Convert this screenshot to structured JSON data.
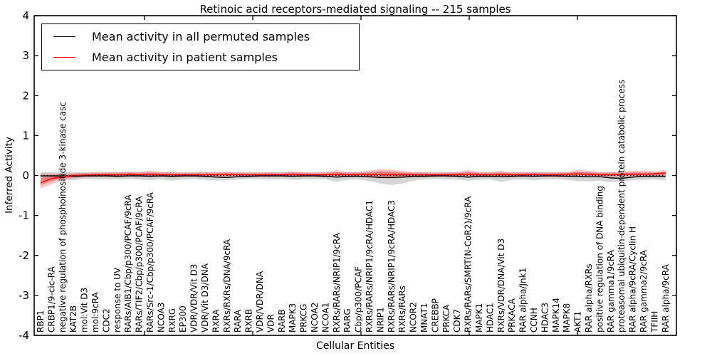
{
  "title": "Retinoic acid receptors-mediated signaling -- 215 samples",
  "axes": {
    "ylabel": "Inferred Activity",
    "xlabel": "Cellular Entities",
    "yticks": [
      "-4",
      "-3",
      "-2",
      "-1",
      "0",
      "1",
      "2",
      "3",
      "4"
    ],
    "ylim": [
      -4,
      4
    ]
  },
  "legend": {
    "entries": [
      {
        "label": "Mean activity in all permuted samples",
        "color": "#000000"
      },
      {
        "label": "Mean activity in patient samples",
        "color": "#ff0000"
      }
    ]
  },
  "colors": {
    "permuted_line": "#000000",
    "patient_line": "#ff0000",
    "permuted_band": "rgba(0,0,0,0.16)",
    "patient_band_outer": "rgba(255,0,0,0.22)",
    "patient_band_inner": "rgba(255,0,0,0.30)",
    "zero_line": "#000000",
    "frame": "#000000"
  },
  "chart_data": {
    "type": "line",
    "title": "Retinoic acid receptors-mediated signaling -- 215 samples",
    "xlabel": "Cellular Entities",
    "ylabel": "Inferred Activity",
    "ylim": [
      -4,
      4
    ],
    "grid": false,
    "legend_position": "upper left",
    "zero_reference_line": 0,
    "categories": [
      "RBP1",
      "CRBP1/9-cic-RA",
      "negative regulation of phosphoinositide 3-kinase casc",
      "KAT2B",
      "mol:Vit D3",
      "mol:9cRA",
      "CDC2",
      "response to UV",
      "RARs/AIB1/Cbp/p300/PCAF/9cRA",
      "RARs/TIF2/Cbp/p300/PCAF/9cRA",
      "RARs/Src-1/Cbp/p300/PCAF/9cRA",
      "NCOA3",
      "RXRG",
      "EP300",
      "VDR/VDR/Vit D3",
      "VDR/Vit D3/DNA",
      "RXRA",
      "RXRs/RXRs/DNA/9cRA",
      "RARA",
      "RXRB",
      "VDR/VDR/DNA",
      "VDR",
      "RARB",
      "MAPK3",
      "PRKCG",
      "NCOA2",
      "NCOA1",
      "RXRs/RARs/NRIP1/9cRA",
      "RARG",
      "Cbp/p300/PCAF",
      "RXRs/RARs/NRIP1/9cRA/HDAC1",
      "NRIP1",
      "RXRs/RARs/NRIP1/9cRA/HDAC3",
      "RXRs/RARs",
      "NCOR2",
      "MNAT1",
      "CREBBP",
      "PRKCA",
      "CDK7",
      "RXRs/RARs/SMRT(N-CoR2)/9cRA",
      "MAPK1",
      "HDAC1",
      "RXRs/VDR/DNA/Vit D3",
      "PRKACA",
      "RAR alpha/Jnk1",
      "CCNH",
      "HDAC3",
      "MAPK14",
      "MAPK8",
      "AKT1",
      "RAR alpha/RXRs",
      "positive regulation of DNA binding",
      "RAR gamma1/9cRA",
      "proteasomal ubiquitin-dependent protein catabolic process",
      "RAR alpha/9cRA/Cyclin H",
      "RAR gamma2/9cRA",
      "TFIIH",
      "RAR alpha/9cRA"
    ],
    "series": [
      {
        "name": "Mean activity in all permuted samples",
        "color": "#000000",
        "values": [
          -0.01,
          -0.01,
          -0.01,
          -0.02,
          -0.01,
          -0.01,
          -0.01,
          -0.02,
          -0.01,
          -0.01,
          -0.02,
          -0.01,
          -0.02,
          -0.01,
          -0.01,
          -0.02,
          -0.04,
          -0.05,
          -0.03,
          -0.02,
          -0.01,
          -0.01,
          -0.01,
          -0.02,
          -0.01,
          -0.01,
          -0.02,
          -0.04,
          -0.02,
          -0.02,
          -0.03,
          -0.05,
          -0.05,
          -0.04,
          -0.02,
          -0.02,
          -0.01,
          -0.01,
          -0.02,
          -0.04,
          -0.02,
          -0.02,
          -0.03,
          -0.02,
          -0.01,
          -0.02,
          -0.01,
          -0.01,
          -0.02,
          -0.02,
          -0.03,
          -0.03,
          -0.06,
          -0.07,
          -0.04,
          -0.02,
          -0.02,
          -0.02
        ]
      },
      {
        "name": "Mean activity in patient samples",
        "color": "#ff0000",
        "values": [
          -0.18,
          -0.08,
          -0.03,
          0.0,
          0.01,
          0.02,
          0.02,
          0.02,
          0.03,
          0.02,
          0.03,
          0.02,
          0.02,
          0.02,
          0.02,
          0.02,
          0.02,
          0.02,
          0.02,
          0.02,
          0.02,
          0.02,
          0.02,
          0.03,
          0.02,
          0.02,
          0.02,
          0.03,
          0.02,
          0.03,
          0.02,
          0.02,
          0.02,
          0.02,
          0.02,
          0.02,
          0.02,
          0.02,
          0.02,
          0.03,
          0.02,
          0.02,
          0.02,
          0.02,
          0.02,
          0.03,
          0.02,
          0.02,
          0.03,
          0.04,
          0.03,
          0.02,
          0.02,
          0.02,
          0.03,
          0.03,
          0.04,
          0.06
        ]
      }
    ],
    "bands": [
      {
        "name": "permuted-samples-spread",
        "color_key": "permuted_band",
        "lo": [
          -0.09,
          -0.1,
          -0.09,
          -0.12,
          -0.09,
          -0.09,
          -0.1,
          -0.1,
          -0.09,
          -0.1,
          -0.12,
          -0.1,
          -0.13,
          -0.1,
          -0.09,
          -0.11,
          -0.13,
          -0.12,
          -0.1,
          -0.09,
          -0.09,
          -0.1,
          -0.09,
          -0.11,
          -0.1,
          -0.09,
          -0.1,
          -0.16,
          -0.11,
          -0.1,
          -0.14,
          -0.2,
          -0.24,
          -0.2,
          -0.13,
          -0.1,
          -0.09,
          -0.1,
          -0.1,
          -0.13,
          -0.11,
          -0.1,
          -0.16,
          -0.11,
          -0.1,
          -0.12,
          -0.1,
          -0.1,
          -0.11,
          -0.14,
          -0.15,
          -0.13,
          -0.17,
          -0.15,
          -0.12,
          -0.11,
          -0.1,
          -0.12
        ],
        "hi": [
          0.08,
          0.08,
          0.08,
          0.08,
          0.08,
          0.08,
          0.08,
          0.08,
          0.09,
          0.08,
          0.09,
          0.08,
          0.08,
          0.08,
          0.08,
          0.08,
          0.08,
          0.08,
          0.08,
          0.08,
          0.08,
          0.08,
          0.08,
          0.09,
          0.08,
          0.08,
          0.08,
          0.09,
          0.08,
          0.09,
          0.1,
          0.12,
          0.11,
          0.09,
          0.08,
          0.08,
          0.08,
          0.08,
          0.08,
          0.09,
          0.08,
          0.08,
          0.09,
          0.08,
          0.08,
          0.08,
          0.08,
          0.08,
          0.08,
          0.09,
          0.09,
          0.08,
          0.08,
          0.08,
          0.08,
          0.08,
          0.08,
          0.08
        ]
      },
      {
        "name": "patient-samples-spread",
        "color_key": "patient_band_outer",
        "lo": [
          -0.33,
          -0.22,
          -0.12,
          -0.07,
          -0.05,
          -0.04,
          -0.04,
          -0.04,
          -0.03,
          -0.04,
          -0.03,
          -0.04,
          -0.05,
          -0.04,
          -0.04,
          -0.04,
          -0.04,
          -0.03,
          -0.04,
          -0.04,
          -0.04,
          -0.04,
          -0.04,
          -0.03,
          -0.04,
          -0.04,
          -0.04,
          -0.04,
          -0.04,
          -0.03,
          -0.06,
          -0.08,
          -0.07,
          -0.06,
          -0.05,
          -0.04,
          -0.04,
          -0.04,
          -0.04,
          -0.03,
          -0.04,
          -0.04,
          -0.04,
          -0.04,
          -0.04,
          -0.03,
          -0.04,
          -0.04,
          -0.03,
          -0.03,
          -0.04,
          -0.04,
          -0.04,
          -0.03,
          -0.03,
          -0.03,
          -0.02,
          0.0
        ],
        "hi": [
          0.06,
          0.05,
          0.05,
          0.06,
          0.07,
          0.07,
          0.08,
          0.08,
          0.1,
          0.09,
          0.12,
          0.09,
          0.08,
          0.07,
          0.07,
          0.08,
          0.08,
          0.1,
          0.08,
          0.07,
          0.07,
          0.08,
          0.07,
          0.1,
          0.08,
          0.07,
          0.08,
          0.13,
          0.09,
          0.09,
          0.12,
          0.17,
          0.15,
          0.12,
          0.09,
          0.08,
          0.07,
          0.08,
          0.09,
          0.14,
          0.09,
          0.08,
          0.12,
          0.08,
          0.08,
          0.08,
          0.08,
          0.08,
          0.09,
          0.14,
          0.12,
          0.09,
          0.08,
          0.1,
          0.12,
          0.12,
          0.1,
          0.14
        ]
      }
    ]
  }
}
